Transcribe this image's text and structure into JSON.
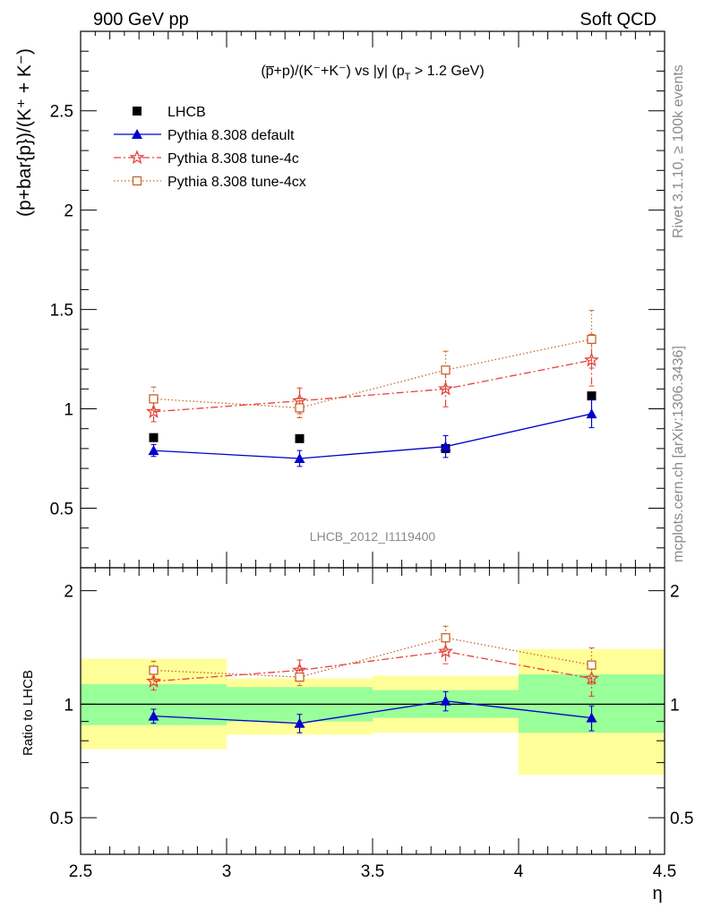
{
  "header": {
    "left": "900 GeV pp",
    "right": "Soft QCD"
  },
  "side_text": {
    "rivet": "Rivet 3.1.10, ≥ 100k events",
    "mcplots": "mcplots.cern.ch [arXiv:1306.3436]"
  },
  "chart_data": [
    {
      "type": "scatter",
      "title": "(p̅+p)/(K⁻+K⁻) vs |y| (p_T > 1.2 GeV)",
      "title_parts": {
        "ratio": "(p̅+p)/(K⁻+K⁻)",
        "vs": " vs |y| (p",
        "sub": "T",
        "cut": " > 1.2 GeV)"
      },
      "ylabel": "(p+bar{p})/(K⁺ + K⁻)",
      "watermark": "LHCB_2012_I1119400",
      "xlim": [
        2.5,
        4.5
      ],
      "ylim": [
        0.2,
        2.9
      ],
      "yticks": [
        "0.5",
        "1",
        "1.5",
        "2",
        "2.5"
      ],
      "x": [
        2.75,
        3.25,
        3.75,
        4.25
      ],
      "xerr": 0.25,
      "series": [
        {
          "name": "LHCB",
          "color": "#000000",
          "marker": "filled-square",
          "line": "none",
          "values": [
            0.855,
            0.85,
            0.8,
            1.065
          ],
          "errors": [
            0.01,
            0.01,
            0.01,
            0.015
          ]
        },
        {
          "name": "Pythia 8.308 default",
          "color": "#0000cc",
          "marker": "filled-triangle",
          "line": "solid",
          "values": [
            0.79,
            0.75,
            0.81,
            0.975
          ],
          "errors": [
            0.03,
            0.04,
            0.055,
            0.07
          ]
        },
        {
          "name": "Pythia 8.308 tune-4c",
          "color": "#e8403a",
          "marker": "open-star",
          "line": "dashdot",
          "values": [
            0.985,
            1.04,
            1.1,
            1.245
          ],
          "errors": [
            0.05,
            0.065,
            0.09,
            0.13
          ]
        },
        {
          "name": "Pythia 8.308 tune-4cx",
          "color": "#c8642b",
          "marker": "open-square",
          "line": "dotted",
          "values": [
            1.05,
            1.005,
            1.195,
            1.35
          ],
          "errors": [
            0.06,
            0.05,
            0.095,
            0.145
          ]
        }
      ],
      "legend_placement": "top-left"
    },
    {
      "type": "scatter",
      "ylabel": "Ratio to LHCB",
      "xlabel": "η",
      "xlim": [
        2.5,
        4.5
      ],
      "ylim": [
        0.4,
        2.3
      ],
      "log_y": true,
      "xticks": [
        "2.5",
        "3",
        "3.5",
        "4",
        "4.5"
      ],
      "yticks": [
        "0.5",
        "1",
        "2"
      ],
      "x": [
        2.75,
        3.25,
        3.75,
        4.25
      ],
      "xerr": 0.25,
      "bands": {
        "yellow": {
          "color": "#ffff99",
          "low": [
            0.76,
            0.83,
            0.84,
            0.65
          ],
          "high": [
            1.32,
            1.17,
            1.19,
            1.4
          ]
        },
        "green": {
          "color": "#99ff99",
          "low": [
            0.88,
            0.9,
            0.92,
            0.84
          ],
          "high": [
            1.13,
            1.11,
            1.09,
            1.2
          ]
        }
      },
      "series": [
        {
          "name": "Pythia 8.308 default",
          "color": "#0000cc",
          "marker": "filled-triangle",
          "line": "solid",
          "values": [
            0.93,
            0.89,
            1.02,
            0.92
          ],
          "errors": [
            0.04,
            0.05,
            0.06,
            0.07
          ]
        },
        {
          "name": "Pythia 8.308 tune-4c",
          "color": "#e8403a",
          "marker": "open-star",
          "line": "dashdot",
          "values": [
            1.15,
            1.23,
            1.38,
            1.17
          ],
          "errors": [
            0.06,
            0.08,
            0.1,
            0.12
          ]
        },
        {
          "name": "Pythia 8.308 tune-4cx",
          "color": "#c8642b",
          "marker": "open-square",
          "line": "dotted",
          "values": [
            1.23,
            1.18,
            1.5,
            1.27
          ],
          "errors": [
            0.07,
            0.06,
            0.11,
            0.14
          ]
        }
      ]
    }
  ]
}
